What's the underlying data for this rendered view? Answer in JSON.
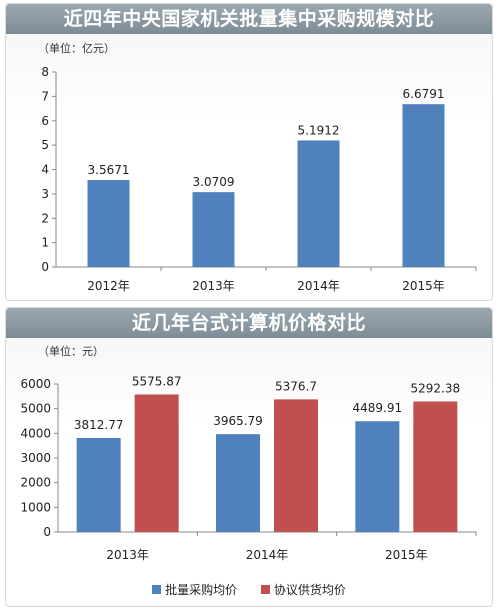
{
  "colors": {
    "blue": "#4f81bd",
    "red": "#c0504d",
    "title_bar": "#8895a0"
  },
  "chart_data": [
    {
      "type": "bar",
      "title": "近四年中央国家机关批量集中采购规模对比",
      "unit": "（单位：亿元）",
      "categories": [
        "2012年",
        "2013年",
        "2014年",
        "2015年"
      ],
      "values": [
        3.5671,
        3.0709,
        5.1912,
        6.6791
      ],
      "value_labels": [
        "3.5671",
        "3.0709",
        "5.1912",
        "6.6791"
      ],
      "ylim": [
        0,
        8
      ],
      "yticks": [
        0,
        1,
        2,
        3,
        4,
        5,
        6,
        7,
        8
      ],
      "grid": false,
      "color": "#4f81bd"
    },
    {
      "type": "bar",
      "title": "近几年台式计算机价格对比",
      "unit": "（单位：元）",
      "categories": [
        "2013年",
        "2014年",
        "2015年"
      ],
      "series": [
        {
          "name": "批量采购均价",
          "values": [
            3812.77,
            3965.79,
            4489.91
          ],
          "labels": [
            "3812.77",
            "3965.79",
            "4489.91"
          ],
          "color": "#4f81bd"
        },
        {
          "name": "协议供货均价",
          "values": [
            5575.87,
            5376.7,
            5292.38
          ],
          "labels": [
            "5575.87",
            "5376.7",
            "5292.38"
          ],
          "color": "#c0504d"
        }
      ],
      "ylim": [
        0,
        6000
      ],
      "yticks": [
        0,
        1000,
        2000,
        3000,
        4000,
        5000,
        6000
      ],
      "grid": false,
      "legend": "bottom"
    }
  ]
}
